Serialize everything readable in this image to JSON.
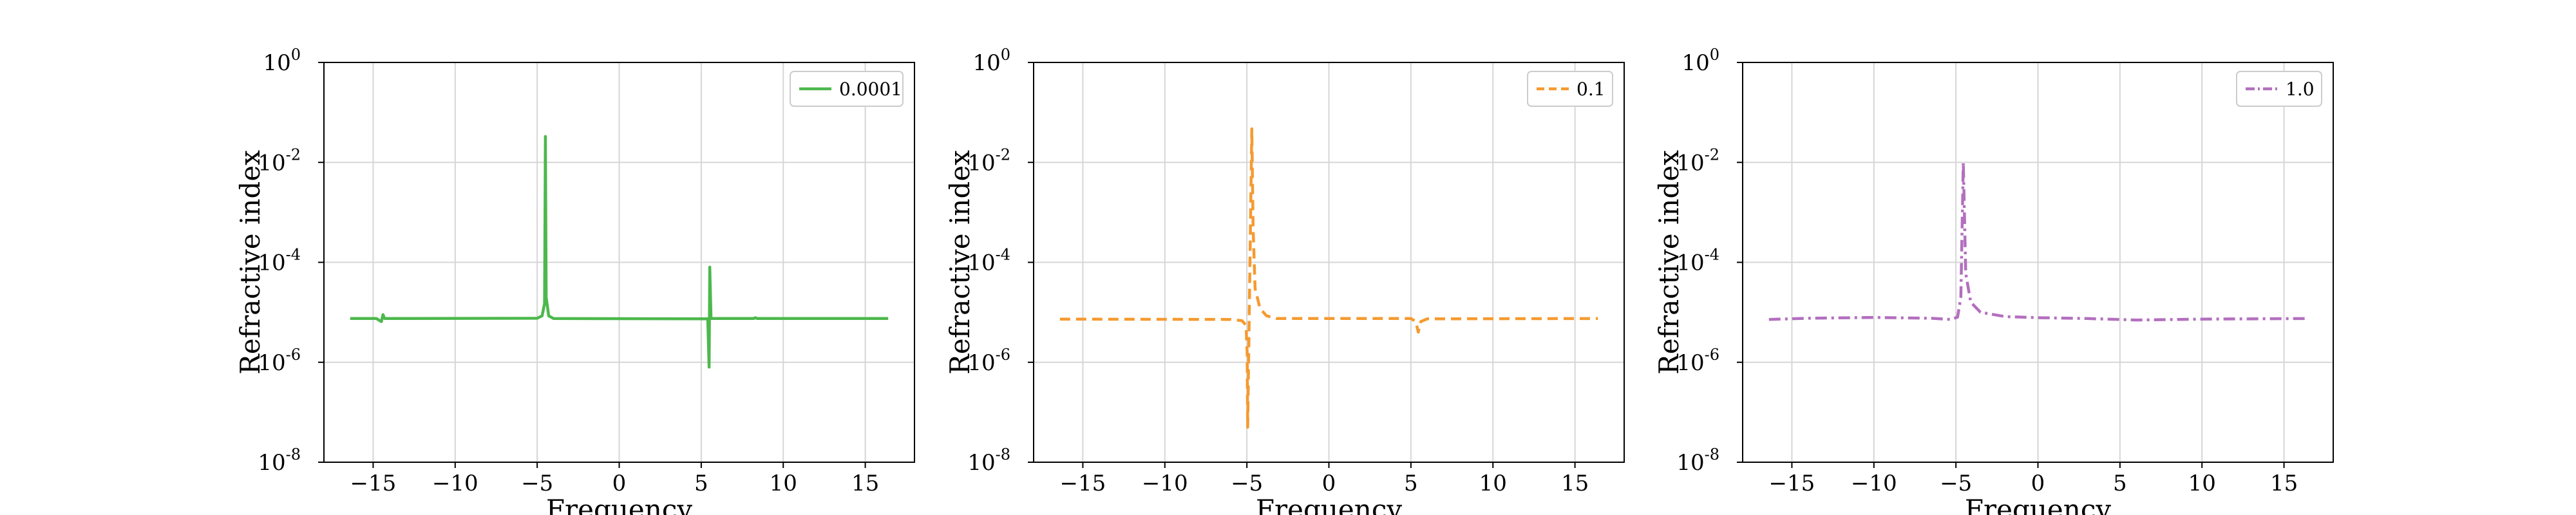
{
  "chart_data": [
    {
      "type": "line",
      "xlabel": "Frequency",
      "ylabel": "Refractive index",
      "yscale": "log",
      "xlim": [
        -18,
        18
      ],
      "ylim": [
        1e-08,
        1
      ],
      "xticks": [
        "−15",
        "−10",
        "−5",
        "0",
        "5",
        "10",
        "15"
      ],
      "yticks": [
        {
          "base": "10",
          "exp": "0"
        },
        {
          "base": "10",
          "exp": "-2"
        },
        {
          "base": "10",
          "exp": "-4"
        },
        {
          "base": "10",
          "exp": "-6"
        },
        {
          "base": "10",
          "exp": "-8"
        }
      ],
      "grid": true,
      "legend_position": "top-right",
      "series": [
        {
          "name": "0.0001",
          "color": "#4cb84c",
          "style": "solid",
          "points": [
            [
              -16.4,
              7.5e-06
            ],
            [
              -14.8,
              7.5e-06
            ],
            [
              -14.5,
              6.5e-06
            ],
            [
              -14.4,
              9e-06
            ],
            [
              -14.3,
              7.5e-06
            ],
            [
              -5.0,
              7.6e-06
            ],
            [
              -4.7,
              8.5e-06
            ],
            [
              -4.55,
              1.5e-05
            ],
            [
              -4.5,
              0.033
            ],
            [
              -4.45,
              2e-05
            ],
            [
              -4.3,
              8.5e-06
            ],
            [
              -4.0,
              7.5e-06
            ],
            [
              5.4,
              7.4e-06
            ],
            [
              5.48,
              8e-07
            ],
            [
              5.52,
              8e-05
            ],
            [
              5.6,
              7.5e-06
            ],
            [
              8.2,
              7.5e-06
            ],
            [
              8.3,
              7.8e-06
            ],
            [
              8.4,
              7.5e-06
            ],
            [
              16.4,
              7.5e-06
            ]
          ]
        },
        {
          "name": "0.1",
          "color": "#f59a30",
          "style": "dashed",
          "points": [
            [
              -16.4,
              7.3e-06
            ],
            [
              -6.0,
              7.2e-06
            ],
            [
              -5.3,
              6.8e-06
            ],
            [
              -5.05,
              5.5e-06
            ],
            [
              -4.98,
              1.5e-06
            ],
            [
              -4.95,
              5e-08
            ],
            [
              -4.7,
              0.047
            ],
            [
              -4.62,
              0.0005
            ],
            [
              -4.5,
              3e-05
            ],
            [
              -4.2,
              1.2e-05
            ],
            [
              -3.8,
              8.5e-06
            ],
            [
              -3.2,
              7.5e-06
            ],
            [
              5.0,
              7.5e-06
            ],
            [
              5.3,
              6.5e-06
            ],
            [
              5.45,
              4e-06
            ],
            [
              5.6,
              6.5e-06
            ],
            [
              6.0,
              7.4e-06
            ],
            [
              16.4,
              7.5e-06
            ]
          ]
        },
        {
          "name": "1.0",
          "color": "#b36fbe",
          "style": "dashdot",
          "points": [
            [
              -16.4,
              7.2e-06
            ],
            [
              -14.0,
              7.6e-06
            ],
            [
              -10.0,
              7.9e-06
            ],
            [
              -6.5,
              7.6e-06
            ],
            [
              -5.3,
              7.2e-06
            ],
            [
              -4.9,
              8e-06
            ],
            [
              -4.7,
              2e-05
            ],
            [
              -4.55,
              0.01
            ],
            [
              -4.4,
              6e-05
            ],
            [
              -4.1,
              1.6e-05
            ],
            [
              -3.5,
              1e-05
            ],
            [
              -2.0,
              8.2e-06
            ],
            [
              0.0,
              7.8e-06
            ],
            [
              3.0,
              7.5e-06
            ],
            [
              6.0,
              7e-06
            ],
            [
              10.0,
              7.3e-06
            ],
            [
              16.4,
              7.5e-06
            ]
          ]
        }
      ]
    }
  ]
}
